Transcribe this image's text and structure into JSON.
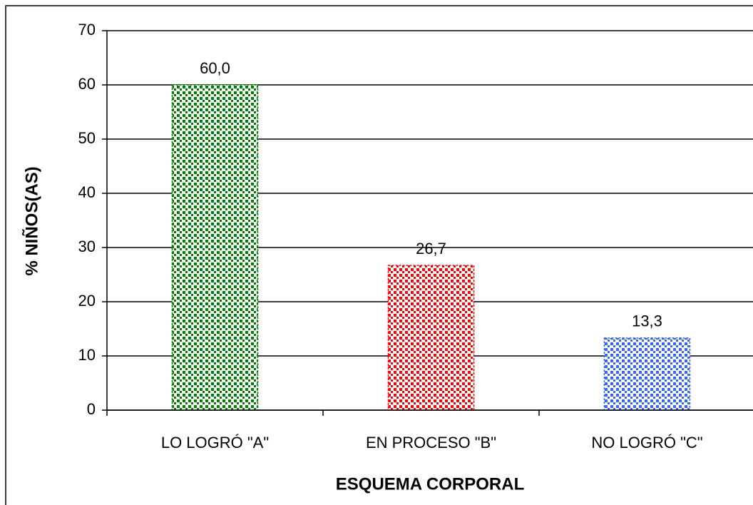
{
  "chart_data": {
    "type": "bar",
    "categories": [
      "LO LOGRÓ \"A\"",
      "EN PROCESO \"B\"",
      "NO LOGRÓ \"C\""
    ],
    "values": [
      60.0,
      26.7,
      13.3
    ],
    "value_labels": [
      "60,0",
      "26,7",
      "13,3"
    ],
    "colors": [
      "#008000",
      "#ff0000",
      "#3366ff"
    ],
    "xlabel": "ESQUEMA CORPORAL",
    "ylabel": "% NIÑOS(AS)",
    "ylim": [
      0,
      70
    ],
    "yticks": [
      0,
      10,
      20,
      30,
      40,
      50,
      60,
      70
    ],
    "grid": true
  }
}
